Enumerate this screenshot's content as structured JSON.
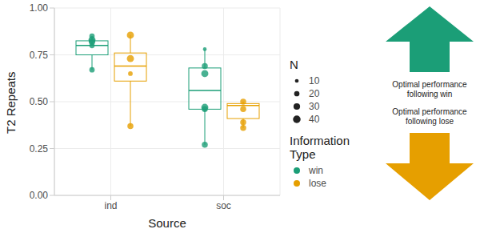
{
  "chart_data": {
    "type": "boxplot",
    "x_label": "Source",
    "y_label": "T2 Repeats",
    "categories": [
      "ind",
      "soc"
    ],
    "ylim": [
      0,
      1
    ],
    "yticks": [
      {
        "value": 0,
        "label": "0.00"
      },
      {
        "value": 0.25,
        "label": "0.25"
      },
      {
        "value": 0.5,
        "label": "0.50"
      },
      {
        "value": 0.75,
        "label": "0.75"
      },
      {
        "value": 1,
        "label": "1.00"
      }
    ],
    "grid": true,
    "legend_title": "Information Type",
    "size_legend": {
      "title": "N",
      "values": [
        10,
        20,
        30,
        40
      ]
    },
    "series": [
      {
        "name": "win",
        "color": "#1b9e77",
        "boxes": [
          {
            "min": 0.67,
            "q1": 0.75,
            "median": 0.8,
            "q3": 0.825,
            "max": 0.85,
            "points": [
              0.85,
              0.83,
              0.82,
              0.8,
              0.67
            ],
            "n": [
              20,
              35,
              30,
              20,
              20
            ]
          },
          {
            "min": 0.27,
            "q1": 0.46,
            "median": 0.56,
            "q3": 0.68,
            "max": 0.78,
            "points": [
              0.78,
              0.69,
              0.65,
              0.47,
              0.46,
              0.27
            ],
            "n": [
              10,
              25,
              35,
              35,
              25,
              25
            ]
          }
        ]
      },
      {
        "name": "lose",
        "color": "#e69f00",
        "boxes": [
          {
            "min": 0.37,
            "q1": 0.61,
            "median": 0.69,
            "q3": 0.76,
            "max": 0.855,
            "points": [
              0.855,
              0.73,
              0.65,
              0.37
            ],
            "n": [
              35,
              35,
              15,
              25
            ]
          },
          {
            "min": 0.36,
            "q1": 0.41,
            "median": 0.48,
            "q3": 0.49,
            "max": 0.5,
            "points": [
              0.5,
              0.46,
              0.39,
              0.36
            ],
            "n": [
              25,
              25,
              25,
              25
            ]
          }
        ]
      }
    ],
    "annotations": [
      "Optimal performance following win",
      "Optimal performance following lose"
    ]
  }
}
